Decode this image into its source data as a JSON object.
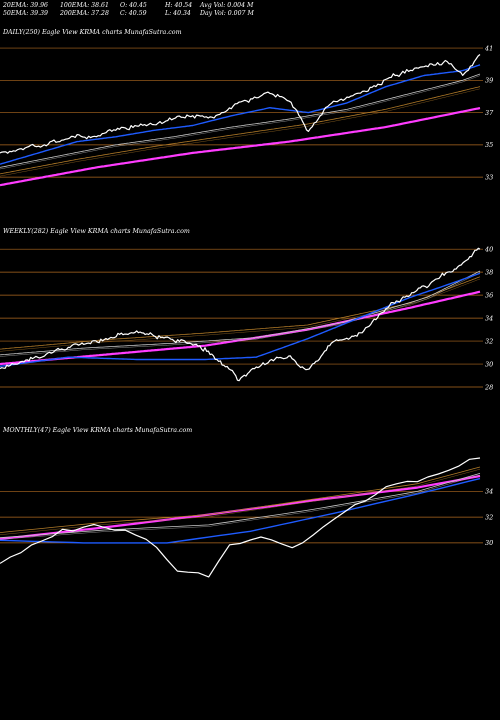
{
  "header": {
    "row1": [
      "20EMA: 39.96",
      "100EMA: 38.61",
      "O: 40.45",
      "H: 40.54",
      "Avg Vol: 0.004  M"
    ],
    "row2": [
      "50EMA: 39.39",
      "200EMA: 37.28",
      "C: 40.59",
      "L: 40.34",
      "Day Vol: 0.007 M"
    ]
  },
  "colors": {
    "background": "#000000",
    "price": "#ffffff",
    "ema20": "#1e5bff",
    "ema50": "#c8c8c8",
    "ema100": "#b07a28",
    "ema200": "#ff3cff",
    "gridline": "#b06a20"
  },
  "chart_data": [
    {
      "type": "line",
      "title": "DAILY(250) Eagle  View  KRMA charts MunafaSutra.com",
      "y_ticks": [
        "41",
        "39",
        "37",
        "35",
        "33"
      ],
      "y_tick_values": [
        41,
        39,
        37,
        35,
        33
      ],
      "ylim": [
        32.2,
        41.5
      ],
      "n_points": 250,
      "series": [
        {
          "key": "price",
          "x": [
            0,
            20,
            35,
            50,
            65,
            80,
            95,
            110,
            125,
            140,
            150,
            160,
            170,
            180,
            192,
            205,
            220,
            232,
            240,
            249
          ],
          "values": [
            34.5,
            35.0,
            35.4,
            35.6,
            36.1,
            36.3,
            36.8,
            36.6,
            37.7,
            38.2,
            37.8,
            35.8,
            37.4,
            37.9,
            38.5,
            39.3,
            39.9,
            40.2,
            39.3,
            40.6
          ]
        },
        {
          "key": "ema20",
          "x": [
            0,
            20,
            40,
            60,
            80,
            100,
            120,
            140,
            160,
            180,
            200,
            220,
            240,
            249
          ],
          "values": [
            33.8,
            34.5,
            35.2,
            35.5,
            35.9,
            36.2,
            36.8,
            37.3,
            37.0,
            37.6,
            38.6,
            39.3,
            39.6,
            39.96
          ]
        },
        {
          "key": "ema50",
          "x": [
            0,
            30,
            60,
            90,
            120,
            150,
            180,
            210,
            240,
            249
          ],
          "values": [
            33.6,
            34.3,
            35.0,
            35.5,
            36.1,
            36.6,
            37.2,
            38.1,
            39.0,
            39.39
          ]
        },
        {
          "key": "ema100",
          "x": [
            0,
            40,
            80,
            120,
            160,
            200,
            249
          ],
          "values": [
            33.2,
            34.1,
            34.9,
            35.6,
            36.3,
            37.2,
            38.61
          ]
        },
        {
          "key": "ema200",
          "x": [
            0,
            50,
            100,
            150,
            200,
            249
          ],
          "values": [
            32.5,
            33.6,
            34.5,
            35.2,
            36.1,
            37.28
          ]
        }
      ]
    },
    {
      "type": "line",
      "title": "WEEKLY(282) Eagle  View  KRMA charts MunafaSutra.com",
      "y_ticks": [
        "40",
        "38",
        "36",
        "34",
        "32",
        "30",
        "28"
      ],
      "y_tick_values": [
        40,
        38,
        36,
        34,
        32,
        30,
        28
      ],
      "ylim": [
        26.0,
        40.8
      ],
      "n_points": 282,
      "series": [
        {
          "key": "price",
          "x": [
            0,
            20,
            40,
            60,
            80,
            100,
            120,
            140,
            160,
            170,
            180,
            195,
            210,
            230,
            245,
            255,
            270,
            281
          ],
          "values": [
            29.6,
            30.5,
            31.5,
            32.2,
            32.8,
            32.2,
            31.3,
            28.7,
            30.5,
            30.7,
            29.3,
            32.0,
            32.6,
            35.4,
            36.5,
            37.4,
            38.5,
            40.0
          ]
        },
        {
          "key": "ema20",
          "x": [
            0,
            40,
            80,
            120,
            150,
            180,
            210,
            240,
            260,
            281
          ],
          "values": [
            29.8,
            30.6,
            30.4,
            30.4,
            30.6,
            32.2,
            34.0,
            35.8,
            36.8,
            37.9
          ]
        },
        {
          "key": "ema50",
          "x": [
            0,
            50,
            100,
            150,
            200,
            250,
            281
          ],
          "values": [
            30.8,
            31.4,
            31.8,
            32.3,
            33.6,
            35.8,
            38.1
          ]
        },
        {
          "key": "ema100",
          "x": [
            0,
            60,
            120,
            180,
            240,
            281
          ],
          "values": [
            31.3,
            32.1,
            32.7,
            33.4,
            35.3,
            37.6
          ]
        },
        {
          "key": "ema200",
          "x": [
            0,
            60,
            120,
            180,
            240,
            281
          ],
          "values": [
            30.0,
            30.8,
            31.6,
            33.0,
            34.9,
            36.3
          ]
        }
      ]
    },
    {
      "type": "line",
      "title": "MONTHLY(47) Eagle  View  KRMA charts MunafaSutra.com",
      "y_ticks": [
        "34",
        "32",
        "30"
      ],
      "y_tick_values": [
        34,
        32,
        30
      ],
      "ylim": [
        24.0,
        38.0
      ],
      "n_points": 47,
      "series": [
        {
          "key": "price",
          "x": [
            0,
            3,
            6,
            9,
            12,
            14,
            17,
            20,
            22,
            25,
            28,
            31,
            34,
            37,
            40,
            43,
            46
          ],
          "values": [
            28.4,
            29.8,
            31.0,
            31.4,
            31.0,
            30.4,
            27.9,
            27.6,
            29.8,
            30.6,
            29.8,
            31.3,
            32.9,
            34.3,
            34.8,
            35.6,
            36.6
          ]
        },
        {
          "key": "ema20",
          "x": [
            0,
            8,
            16,
            24,
            32,
            40,
            46
          ],
          "values": [
            30.2,
            30.0,
            30.0,
            30.9,
            32.3,
            33.8,
            35.0
          ]
        },
        {
          "key": "ema50",
          "x": [
            0,
            10,
            20,
            30,
            40,
            46
          ],
          "values": [
            30.4,
            31.0,
            31.4,
            32.6,
            34.0,
            35.4
          ]
        },
        {
          "key": "ema100",
          "x": [
            0,
            10,
            20,
            30,
            40,
            46
          ],
          "values": [
            30.8,
            31.6,
            32.2,
            33.4,
            34.6,
            35.9
          ]
        },
        {
          "key": "ema200",
          "x": [
            0,
            10,
            20,
            30,
            40,
            46
          ],
          "values": [
            30.3,
            31.2,
            32.2,
            33.3,
            34.3,
            35.2
          ]
        }
      ]
    }
  ]
}
